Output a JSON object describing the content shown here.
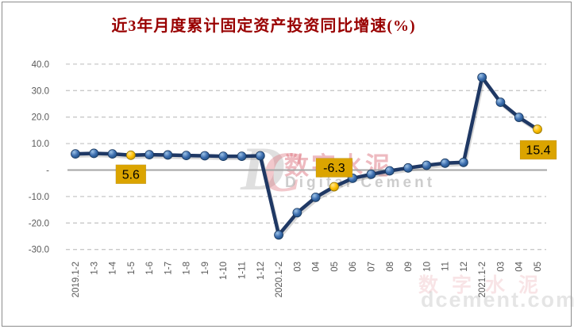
{
  "page": {
    "background": "#FFFFFF",
    "frame_border_color": "#8C8C8C"
  },
  "title": {
    "text": "近3年月度累计固定资产投资同比增速(%)",
    "color": "#990000"
  },
  "chart_data": {
    "type": "line",
    "title": "近3年月度累计固定资产投资同比增速(%)",
    "categories": [
      "2019.1-2",
      "1-3",
      "1-4",
      "1-5",
      "1-6",
      "1-7",
      "1-8",
      "1-9",
      "1-10",
      "1-11",
      "1-12",
      "2020.1-2",
      "03",
      "04",
      "05",
      "06",
      "07",
      "08",
      "09",
      "10",
      "11",
      "12",
      "2021.1-2",
      "03",
      "04",
      "05"
    ],
    "values": [
      6.1,
      6.3,
      6.1,
      5.6,
      5.8,
      5.7,
      5.5,
      5.4,
      5.2,
      5.2,
      5.4,
      -24.5,
      -16.1,
      -10.3,
      -6.3,
      -3.1,
      -1.6,
      -0.3,
      0.8,
      1.8,
      2.6,
      2.9,
      35.0,
      25.6,
      19.9,
      15.4
    ],
    "xlabel": "",
    "ylabel": "",
    "ylim": [
      -30,
      40
    ],
    "grid": "horizontal-dashed",
    "legend": "none",
    "y_ticks": [
      {
        "label": "40.0",
        "value": 40
      },
      {
        "label": "30.0",
        "value": 30
      },
      {
        "label": "20.0",
        "value": 20
      },
      {
        "label": "10.0",
        "value": 10
      },
      {
        "label": "-",
        "value": 0
      },
      {
        "label": "-10.0",
        "value": -10
      },
      {
        "label": "-20.0",
        "value": -20
      },
      {
        "label": "-30.0",
        "value": -30
      }
    ],
    "highlights": [
      {
        "index": 3,
        "label": "5.6",
        "position": "below"
      },
      {
        "index": 14,
        "label": "-6.3",
        "position": "above"
      },
      {
        "index": 25,
        "label": "15.4",
        "position": "below-right"
      }
    ],
    "colors": {
      "line": "#1F3864",
      "marker": "#3A6BAD",
      "marker_edge": "#17365D",
      "highlight_marker": "#FFC000",
      "label_bg": "#DBA400",
      "label_text": "#000000",
      "axis_text": "#595959",
      "gridline": "#C8C8C8",
      "zero_line": "#A6A6A6"
    }
  },
  "watermark": {
    "logo_d": "D",
    "logo_c": "C",
    "cn": "数字水泥",
    "en": "Digital Cement",
    "corner_cn": "数字水泥",
    "corner_url": "dcement.com"
  }
}
